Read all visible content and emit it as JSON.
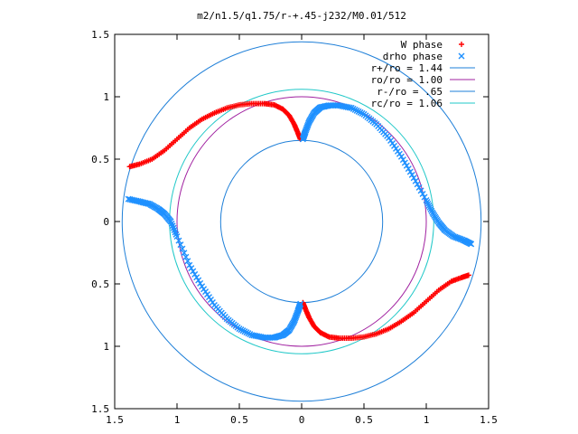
{
  "chart_data": {
    "type": "scatter",
    "title": "m2/n1.5/q1.75/r-+.45-j232/M0.01/512",
    "xlabel": "",
    "ylabel": "",
    "xlim": [
      -1.5,
      1.5
    ],
    "ylim": [
      -1.5,
      1.5
    ],
    "x_ticks": [
      -1.5,
      -1,
      -0.5,
      0,
      0.5,
      1,
      1.5
    ],
    "y_ticks": [
      -1.5,
      -1,
      -0.5,
      0,
      0.5,
      1,
      1.5
    ],
    "x_tick_labels": [
      "1.5",
      "1",
      "0.5",
      "0",
      "0.5",
      "1",
      "1.5"
    ],
    "y_tick_labels": [
      "1.5",
      "1",
      "0.5",
      "0",
      "0.5",
      "1",
      "1.5"
    ],
    "grid": false,
    "legend_position": "top-right",
    "series": [
      {
        "name": "W phase",
        "kind": "points",
        "marker": "+",
        "color": "#ff0000",
        "branches": [
          {
            "x": [
              -1.38,
              -1.3,
              -1.2,
              -1.1,
              -1.0,
              -0.9,
              -0.8,
              -0.7,
              -0.6,
              -0.5,
              -0.4,
              -0.3,
              -0.22,
              -0.15,
              -0.1,
              -0.06,
              -0.03,
              -0.01
            ],
            "y": [
              0.44,
              0.46,
              0.5,
              0.57,
              0.66,
              0.75,
              0.82,
              0.87,
              0.91,
              0.935,
              0.945,
              0.945,
              0.935,
              0.9,
              0.85,
              0.78,
              0.71,
              0.66
            ]
          },
          {
            "x": [
              1.34,
              1.28,
              1.2,
              1.1,
              1.0,
              0.9,
              0.8,
              0.7,
              0.6,
              0.5,
              0.4,
              0.3,
              0.22,
              0.15,
              0.1,
              0.06,
              0.03,
              0.01
            ],
            "y": [
              -0.43,
              -0.45,
              -0.48,
              -0.55,
              -0.64,
              -0.73,
              -0.8,
              -0.86,
              -0.9,
              -0.925,
              -0.935,
              -0.935,
              -0.925,
              -0.89,
              -0.84,
              -0.77,
              -0.7,
              -0.65
            ]
          }
        ]
      },
      {
        "name": "drho phase",
        "kind": "points",
        "marker": "x",
        "color": "#1e90ff",
        "branches": [
          {
            "x": [
              0.01,
              0.03,
              0.06,
              0.1,
              0.15,
              0.22,
              0.3,
              0.4,
              0.5,
              0.6,
              0.7,
              0.8,
              0.9,
              1.0,
              1.05,
              1.1,
              1.15,
              1.22,
              1.3,
              1.36
            ],
            "y": [
              0.66,
              0.72,
              0.8,
              0.87,
              0.915,
              0.93,
              0.93,
              0.91,
              0.86,
              0.78,
              0.67,
              0.52,
              0.35,
              0.17,
              0.07,
              -0.01,
              -0.07,
              -0.12,
              -0.15,
              -0.18
            ]
          },
          {
            "x": [
              -0.01,
              -0.03,
              -0.06,
              -0.1,
              -0.15,
              -0.22,
              -0.3,
              -0.4,
              -0.5,
              -0.6,
              -0.7,
              -0.8,
              -0.9,
              -1.0,
              -1.05,
              -1.1,
              -1.15,
              -1.22,
              -1.3,
              -1.39
            ],
            "y": [
              -0.66,
              -0.72,
              -0.8,
              -0.87,
              -0.91,
              -0.93,
              -0.93,
              -0.91,
              -0.86,
              -0.78,
              -0.67,
              -0.52,
              -0.35,
              -0.12,
              0.0,
              0.06,
              0.1,
              0.14,
              0.16,
              0.18
            ]
          }
        ]
      },
      {
        "name": "r+/ro = 1.44",
        "kind": "circle",
        "radius": 1.44,
        "color": "#1e7fd8"
      },
      {
        "name": "ro/ro = 1.00",
        "kind": "circle",
        "radius": 1.0,
        "color": "#a020a0"
      },
      {
        "name": "r-/ro = .65",
        "kind": "circle",
        "radius": 0.65,
        "color": "#1e7fd8"
      },
      {
        "name": "rc/ro = 1.06",
        "kind": "circle",
        "radius": 1.06,
        "color": "#20c8c8"
      }
    ]
  }
}
